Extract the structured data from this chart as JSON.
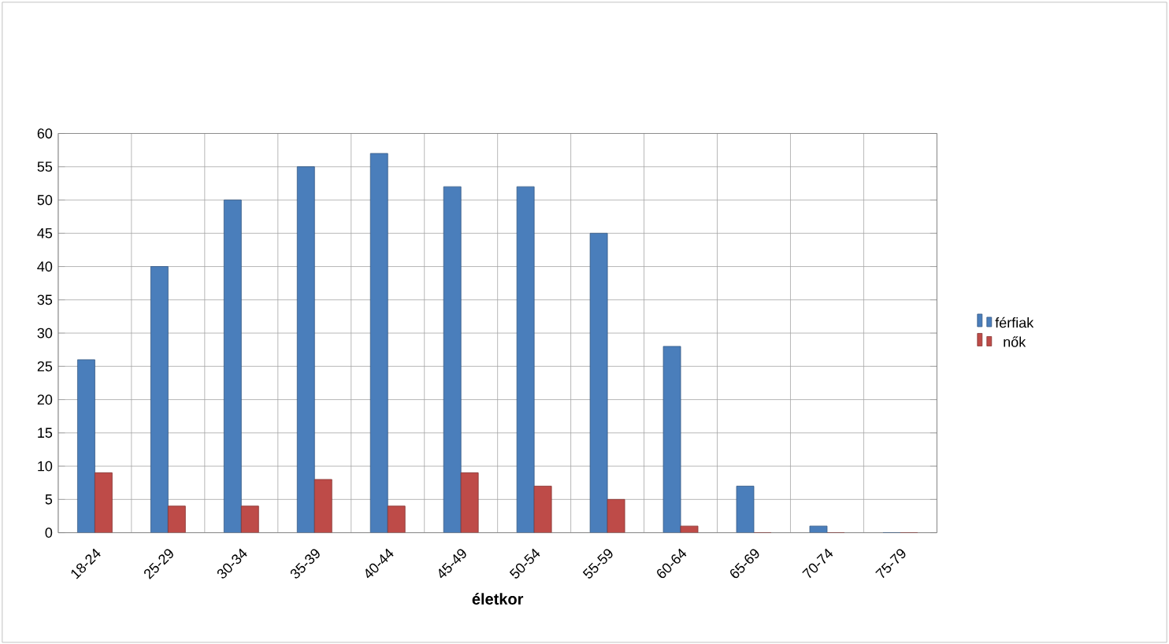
{
  "chart_data": {
    "type": "bar",
    "xlabel": "életkor",
    "categories": [
      "18-24",
      "25-29",
      "30-34",
      "35-39",
      "40-44",
      "45-49",
      "50-54",
      "55-59",
      "60-64",
      "65-69",
      "70-74",
      "75-79"
    ],
    "series": [
      {
        "name": "férfiak",
        "color": "#4a7ebb",
        "values": [
          26,
          40,
          50,
          55,
          57,
          52,
          52,
          45,
          28,
          7,
          1,
          0
        ]
      },
      {
        "name": "nők",
        "color": "#be4b48",
        "values": [
          9,
          4,
          4,
          8,
          4,
          9,
          7,
          5,
          1,
          0,
          0,
          0
        ]
      }
    ],
    "ylim": [
      0,
      60
    ],
    "yticks": [
      0,
      5,
      10,
      15,
      20,
      25,
      30,
      35,
      40,
      45,
      50,
      55,
      60
    ],
    "grid": true,
    "legend": "right"
  }
}
